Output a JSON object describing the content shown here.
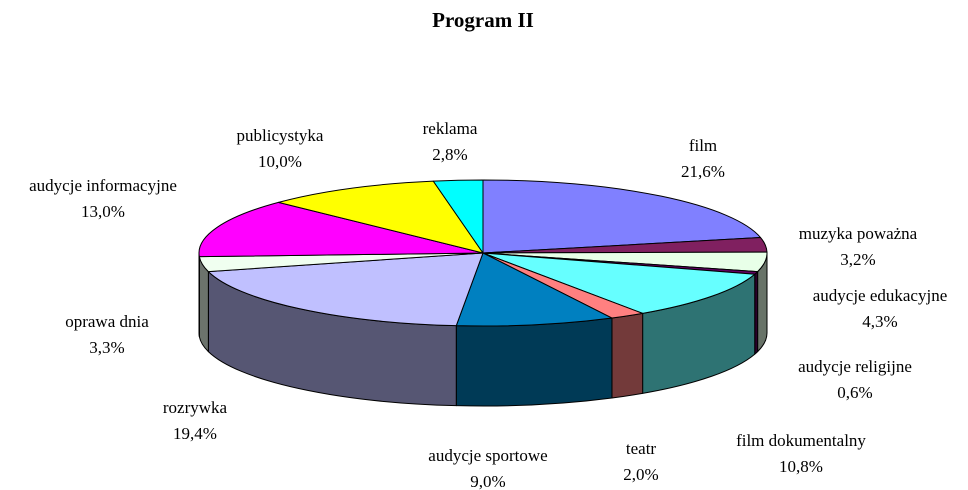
{
  "chart_data": {
    "type": "pie3d",
    "title": "Program II",
    "categories": [
      "film",
      "muzyka poważna",
      "audycje edukacyjne",
      "audycje religijne",
      "film dokumentalny",
      "teatr",
      "audycje sportowe",
      "rozrywka",
      "oprawa dnia",
      "audycje informacyjne",
      "publicystyka",
      "reklama"
    ],
    "values": [
      21.6,
      3.2,
      4.3,
      0.6,
      10.8,
      2.0,
      9.0,
      19.4,
      3.3,
      13.0,
      10.0,
      2.8
    ],
    "value_labels": [
      "21,6%",
      "3,2%",
      "4,3%",
      "0,6%",
      "10,8%",
      "2,0%",
      "9,0%",
      "19,4%",
      "3,3%",
      "13,0%",
      "10,0%",
      "2,8%"
    ],
    "colors": [
      "#8080ff",
      "#802060",
      "#e8ffe8",
      "#600060",
      "#66ffff",
      "#ff8080",
      "#0080c0",
      "#c0c0ff",
      "#f0fff0",
      "#ff00ff",
      "#ffff00",
      "#00ffff"
    ]
  }
}
